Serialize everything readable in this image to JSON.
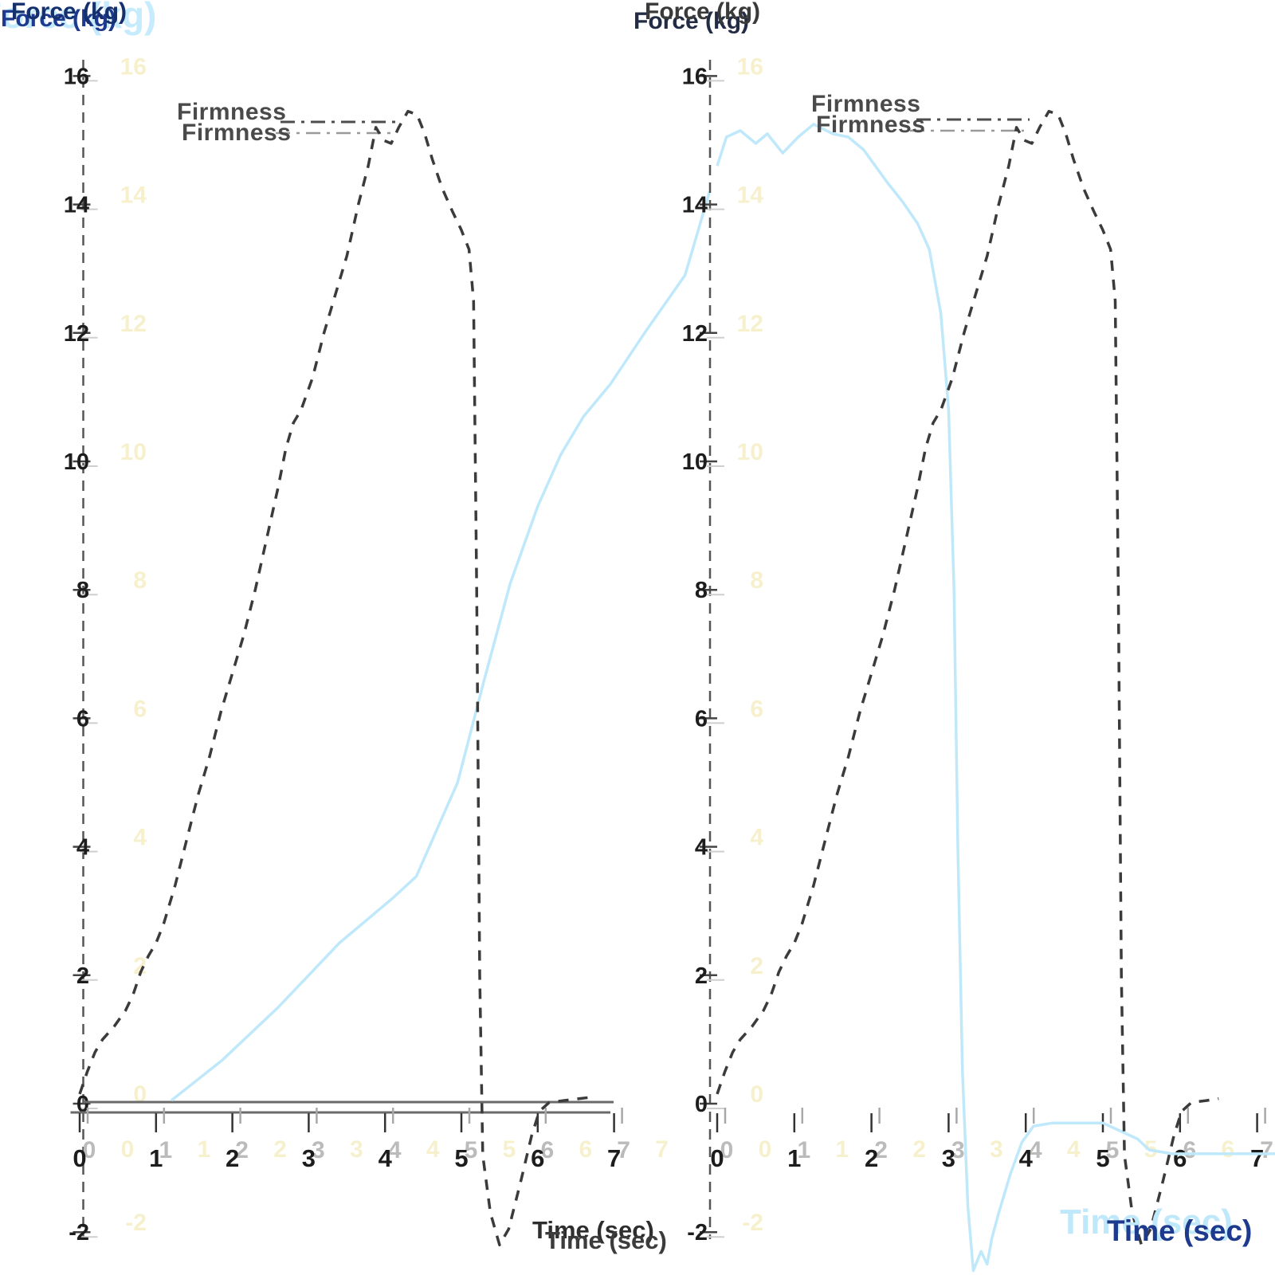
{
  "figure": {
    "description": "Two ghosted force-time texture analysis chart panels",
    "background": "#ffffff"
  },
  "colors": {
    "force_curve": "#3b3b3b",
    "aux_curve": "#bfe9fb",
    "axis_line": "#6a6a6a",
    "y_axis_dash": "#555555",
    "tick_main": "#1d1d1d",
    "tick_ghost_yellow": "#f7f0cd",
    "tick_ghost_gray": "#bbbbbb",
    "firmness_line": "#4d4d4d",
    "firmness_line_ghost": "#9a9a9a",
    "title_navy": "#1e3a8f",
    "title_light_blue": "#c5ebfc",
    "x_title_navy": "#1d3a8c"
  },
  "chart_data": [
    {
      "type": "line",
      "panel": "left",
      "ylabel": "Force (kg)",
      "xlabel": "Time (sec)",
      "annotation": {
        "label": "Firmness",
        "value_kg_approx": 15.3
      },
      "ylim": [
        -2,
        16
      ],
      "xlim": [
        0,
        7
      ],
      "y_ticks": [
        16,
        14,
        12,
        10,
        8,
        6,
        4,
        2,
        0,
        -2
      ],
      "x_ticks": [
        0,
        1,
        2,
        3,
        4,
        5,
        6,
        7
      ],
      "grid": false,
      "series": [
        {
          "name": "force-dashed",
          "style": "dashed",
          "x": [
            0,
            0.1,
            0.2,
            0.3,
            0.45,
            0.6,
            0.7,
            0.8,
            0.9,
            1.0,
            1.1,
            1.25,
            1.4,
            1.55,
            1.7,
            1.85,
            2.0,
            2.15,
            2.3,
            2.45,
            2.6,
            2.7,
            2.8,
            2.9,
            3.05,
            3.2,
            3.35,
            3.5,
            3.65,
            3.78,
            3.88,
            3.98,
            4.08,
            4.18,
            4.3,
            4.42,
            4.52,
            4.62,
            4.75,
            4.88,
            5.0,
            5.1,
            5.16,
            5.2,
            5.24,
            5.28,
            5.38,
            5.5,
            5.62,
            5.78,
            5.92,
            6.02,
            6.15,
            6.35,
            6.55,
            6.7
          ],
          "y": [
            0.15,
            0.5,
            0.8,
            1.0,
            1.2,
            1.45,
            1.7,
            2.05,
            2.3,
            2.5,
            2.8,
            3.4,
            4.1,
            4.8,
            5.4,
            6.1,
            6.7,
            7.3,
            8.0,
            8.8,
            9.6,
            10.2,
            10.6,
            10.8,
            11.3,
            12.0,
            12.6,
            13.2,
            14.0,
            14.6,
            15.2,
            15.0,
            14.95,
            15.2,
            15.45,
            15.4,
            15.1,
            14.7,
            14.25,
            13.9,
            13.6,
            13.3,
            12.5,
            8.0,
            2.0,
            -0.8,
            -1.7,
            -2.2,
            -1.95,
            -1.2,
            -0.5,
            -0.12,
            0.02,
            0.05,
            0.08,
            0.1
          ]
        },
        {
          "name": "aux-light-blue",
          "style": "solid",
          "x": [
            1.2,
            1.87,
            2.6,
            3.4,
            4.1,
            4.41,
            4.95,
            5.3,
            5.64,
            6.0,
            6.3,
            6.6,
            6.95,
            7.4,
            7.93,
            8.25
          ],
          "y": [
            0.05,
            0.68,
            1.5,
            2.5,
            3.2,
            3.54,
            5.0,
            6.6,
            8.1,
            9.3,
            10.1,
            10.7,
            11.2,
            12.0,
            12.9,
            14.2
          ]
        }
      ]
    },
    {
      "type": "line",
      "panel": "right",
      "ylabel": "Force (kg)",
      "xlabel": "Time (sec)",
      "annotation": {
        "label": "Firmness",
        "value_kg_approx": 15.3
      },
      "ylim": [
        -2,
        16
      ],
      "xlim": [
        0,
        7
      ],
      "y_ticks": [
        16,
        14,
        12,
        10,
        8,
        6,
        4,
        2,
        0,
        -2
      ],
      "x_ticks": [
        0,
        1,
        2,
        3,
        4,
        5,
        6,
        7
      ],
      "grid": false,
      "series": [
        {
          "name": "force-dashed",
          "style": "dashed",
          "x": [
            0,
            0.1,
            0.2,
            0.3,
            0.45,
            0.6,
            0.7,
            0.8,
            0.9,
            1.0,
            1.1,
            1.25,
            1.4,
            1.55,
            1.7,
            1.85,
            2.0,
            2.15,
            2.3,
            2.45,
            2.6,
            2.7,
            2.8,
            2.9,
            3.05,
            3.2,
            3.35,
            3.5,
            3.65,
            3.78,
            3.88,
            3.98,
            4.08,
            4.18,
            4.3,
            4.42,
            4.52,
            4.62,
            4.75,
            4.88,
            5.0,
            5.1,
            5.16,
            5.2,
            5.24,
            5.28,
            5.38,
            5.5,
            5.62,
            5.78,
            5.92,
            6.02,
            6.15,
            6.35,
            6.5
          ],
          "y": [
            0.15,
            0.5,
            0.8,
            1.0,
            1.2,
            1.45,
            1.7,
            2.05,
            2.3,
            2.5,
            2.8,
            3.4,
            4.1,
            4.8,
            5.4,
            6.1,
            6.7,
            7.3,
            8.0,
            8.8,
            9.6,
            10.2,
            10.6,
            10.8,
            11.3,
            12.0,
            12.6,
            13.2,
            14.0,
            14.6,
            15.2,
            15.0,
            14.95,
            15.2,
            15.45,
            15.4,
            15.1,
            14.7,
            14.25,
            13.9,
            13.6,
            13.3,
            12.5,
            8.0,
            2.0,
            -0.8,
            -1.7,
            -2.2,
            -1.95,
            -1.2,
            -0.5,
            -0.12,
            0.02,
            0.05,
            0.08
          ]
        },
        {
          "name": "aux-light-blue",
          "style": "solid",
          "x": [
            0,
            0.12,
            0.3,
            0.5,
            0.65,
            0.85,
            1.05,
            1.25,
            1.5,
            1.7,
            1.9,
            2.05,
            2.2,
            2.4,
            2.6,
            2.75,
            2.9,
            3.0,
            3.07,
            3.12,
            3.18,
            3.25,
            3.32,
            3.42,
            3.5,
            3.56,
            3.65,
            3.8,
            3.95,
            4.1,
            4.35,
            5.0,
            5.45,
            5.6,
            5.9,
            7.25
          ],
          "y": [
            14.6,
            15.05,
            15.15,
            14.95,
            15.1,
            14.8,
            15.05,
            15.25,
            15.1,
            15.05,
            14.85,
            14.6,
            14.35,
            14.05,
            13.7,
            13.3,
            12.3,
            10.8,
            8.0,
            4.0,
            0.5,
            -1.6,
            -2.6,
            -2.3,
            -2.5,
            -2.1,
            -1.7,
            -1.1,
            -0.6,
            -0.35,
            -0.3,
            -0.3,
            -0.55,
            -0.72,
            -0.78,
            -0.78
          ]
        }
      ]
    }
  ]
}
